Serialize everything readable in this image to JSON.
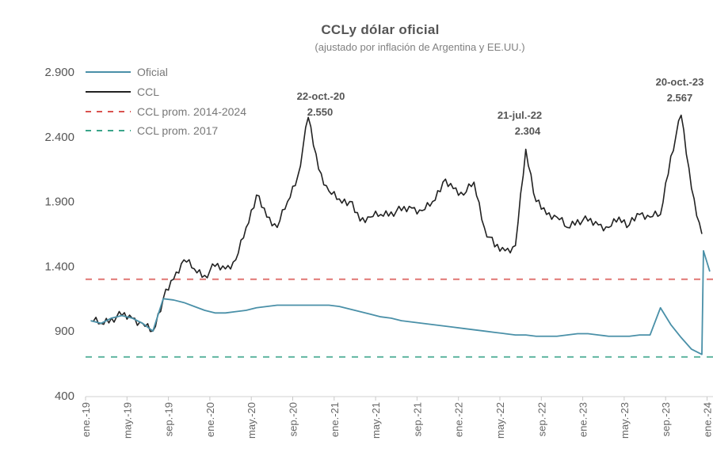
{
  "chart_data": {
    "type": "line",
    "title": "CCLy dólar oficial",
    "subtitle": "(ajustado por inflación de Argentina y EE.UU.)",
    "xlabel": "",
    "ylabel": "",
    "ylim": [
      400,
      2900
    ],
    "yticks": [
      "400",
      "900",
      "1.400",
      "1.900",
      "2.400",
      "2.900"
    ],
    "xticks": [
      "ene.-19",
      "may.-19",
      "sep.-19",
      "ene.-20",
      "may.-20",
      "sep.-20",
      "ene.-21",
      "may.-21",
      "sep.-21",
      "ene.-22",
      "may.-22",
      "sep.-22",
      "ene.-23",
      "may.-23",
      "sep.-23",
      "ene.-24"
    ],
    "grid": false,
    "legend_position": "top-left",
    "legend": [
      {
        "label": "Oficial",
        "style": "solid",
        "color": "#4a90a8"
      },
      {
        "label": "CCL",
        "style": "solid",
        "color": "#222222"
      },
      {
        "label": "CCL prom. 2014-2024",
        "style": "dashed",
        "color": "#d9534f"
      },
      {
        "label": "CCL prom. 2017",
        "style": "dashed",
        "color": "#3aa58a"
      }
    ],
    "annotations": [
      {
        "date": "22-oct.-20",
        "value": "2.550"
      },
      {
        "date": "21-jul.-22",
        "value": "2.304"
      },
      {
        "date": "20-oct.-23",
        "value": "2.567"
      }
    ],
    "reference_lines": [
      {
        "name": "CCL prom. 2014-2024",
        "value": 1300
      },
      {
        "name": "CCL prom. 2017",
        "value": 700
      }
    ],
    "series": [
      {
        "name": "CCL",
        "x": [
          "ene.-19",
          "feb.-19",
          "mar.-19",
          "abr.-19",
          "may.-19",
          "jun.-19",
          "jul.-19",
          "ago.-19",
          "sep.-19",
          "oct.-19",
          "nov.-19",
          "dic.-19",
          "ene.-20",
          "feb.-20",
          "mar.-20",
          "abr.-20",
          "may.-20",
          "jun.-20",
          "jul.-20",
          "ago.-20",
          "sep.-20",
          "oct.-20",
          "nov.-20",
          "dic.-20",
          "ene.-21",
          "feb.-21",
          "mar.-21",
          "abr.-21",
          "may.-21",
          "jun.-21",
          "jul.-21",
          "ago.-21",
          "sep.-21",
          "oct.-21",
          "nov.-21",
          "dic.-21",
          "ene.-22",
          "feb.-22",
          "mar.-22",
          "abr.-22",
          "may.-22",
          "jun.-22",
          "jul.-22",
          "ago.-22",
          "sep.-22",
          "oct.-22",
          "nov.-22",
          "dic.-22",
          "ene.-23",
          "feb.-23",
          "mar.-23",
          "abr.-23",
          "may.-23",
          "jun.-23",
          "jul.-23",
          "ago.-23",
          "sep.-23",
          "oct.-23",
          "nov.-23",
          "dic.-23"
        ],
        "values": [
          980,
          960,
          1000,
          1020,
          1000,
          960,
          900,
          1150,
          1300,
          1450,
          1380,
          1330,
          1400,
          1380,
          1450,
          1700,
          1950,
          1780,
          1700,
          1900,
          2100,
          2550,
          2150,
          1980,
          1920,
          1900,
          1750,
          1780,
          1800,
          1820,
          1830,
          1850,
          1830,
          1900,
          2050,
          2000,
          1950,
          2050,
          1700,
          1550,
          1520,
          1560,
          2304,
          1900,
          1800,
          1780,
          1700,
          1760,
          1750,
          1720,
          1700,
          1780,
          1720,
          1800,
          1780,
          1800,
          2250,
          2567,
          2000,
          1650
        ]
      },
      {
        "name": "Oficial",
        "x": [
          "ene.-19",
          "feb.-19",
          "mar.-19",
          "abr.-19",
          "may.-19",
          "jun.-19",
          "jul.-19",
          "ago.-19",
          "sep.-19",
          "oct.-19",
          "nov.-19",
          "dic.-19",
          "ene.-20",
          "feb.-20",
          "mar.-20",
          "abr.-20",
          "may.-20",
          "jun.-20",
          "jul.-20",
          "ago.-20",
          "sep.-20",
          "oct.-20",
          "nov.-20",
          "dic.-20",
          "ene.-21",
          "feb.-21",
          "mar.-21",
          "abr.-21",
          "may.-21",
          "jun.-21",
          "jul.-21",
          "ago.-21",
          "sep.-21",
          "oct.-21",
          "nov.-21",
          "dic.-21",
          "ene.-22",
          "feb.-22",
          "mar.-22",
          "abr.-22",
          "may.-22",
          "jun.-22",
          "jul.-22",
          "ago.-22",
          "sep.-22",
          "oct.-22",
          "nov.-22",
          "dic.-22",
          "ene.-23",
          "feb.-23",
          "mar.-23",
          "abr.-23",
          "may.-23",
          "jun.-23",
          "jul.-23",
          "ago.-23",
          "sep.-23",
          "oct.-23",
          "nov.-23",
          "dic.-23"
        ],
        "values": [
          980,
          960,
          1000,
          1020,
          1000,
          960,
          900,
          1150,
          1140,
          1120,
          1090,
          1060,
          1040,
          1040,
          1050,
          1060,
          1080,
          1090,
          1100,
          1100,
          1100,
          1100,
          1100,
          1100,
          1090,
          1070,
          1050,
          1030,
          1010,
          1000,
          980,
          970,
          960,
          950,
          940,
          930,
          920,
          910,
          900,
          890,
          880,
          870,
          870,
          860,
          860,
          860,
          870,
          880,
          880,
          870,
          860,
          860,
          860,
          870,
          870,
          1080,
          950,
          850,
          760,
          1520
        ]
      }
    ]
  }
}
